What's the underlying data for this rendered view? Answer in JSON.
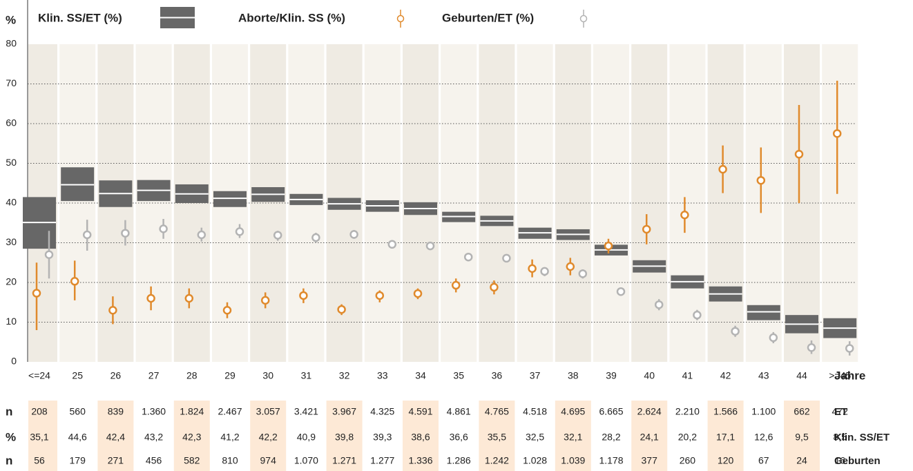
{
  "chart_data": {
    "type": "interval",
    "y_unit_label": "%",
    "x_axis_label": "Jahre",
    "categories": [
      "<=24",
      "25",
      "26",
      "27",
      "28",
      "29",
      "30",
      "31",
      "32",
      "33",
      "34",
      "35",
      "36",
      "37",
      "38",
      "39",
      "40",
      "41",
      "42",
      "43",
      "44",
      ">=45"
    ],
    "ylim": [
      0,
      80
    ],
    "yticks": [
      0,
      10,
      20,
      30,
      40,
      50,
      60,
      70,
      80
    ],
    "grid": true,
    "series": [
      {
        "name": "Klin. SS/ET (%)",
        "color": "#676767",
        "mark": "box",
        "values": [
          35.1,
          44.6,
          42.4,
          43.2,
          42.3,
          41.2,
          42.2,
          40.9,
          39.8,
          39.3,
          38.6,
          36.6,
          35.5,
          32.5,
          32.1,
          28.2,
          24.1,
          20.2,
          17.1,
          12.6,
          9.5,
          8.5
        ],
        "value_labels": [
          "35,1",
          "44,6",
          "42,4",
          "43,2",
          "42,3",
          "41,2",
          "42,2",
          "40,9",
          "39,8",
          "39,3",
          "38,6",
          "36,6",
          "35,5",
          "32,5",
          "32,1",
          "28,2",
          "24,1",
          "20,2",
          "17,1",
          "12,6",
          "9,5",
          "8,5"
        ],
        "lower": [
          28.5,
          40.5,
          39,
          40.5,
          40,
          39,
          40.3,
          39.5,
          38.3,
          37.8,
          37,
          35.2,
          34.2,
          31,
          30.7,
          26.8,
          22.5,
          18.5,
          15.2,
          10.5,
          7.2,
          6
        ],
        "upper": [
          41.5,
          49,
          45.7,
          45.8,
          44.7,
          43,
          44,
          42.3,
          41.3,
          40.7,
          40.2,
          37.8,
          36.8,
          33.8,
          33.4,
          29.5,
          25.6,
          21.8,
          19,
          14.3,
          11.8,
          11
        ]
      },
      {
        "name": "Aborte/Klin. SS (%)",
        "color": "#e08a2c",
        "mark": "point",
        "values": [
          17.3,
          20.3,
          13,
          16,
          16,
          13,
          15.5,
          16.7,
          13.2,
          16.7,
          17.2,
          19.3,
          18.8,
          23.5,
          24,
          29.2,
          33.4,
          37,
          48.5,
          45.7,
          52.3,
          57.5
        ],
        "lower": [
          8,
          15.5,
          9.5,
          13,
          13.5,
          11,
          13.5,
          14.8,
          11.8,
          15,
          15.8,
          17.5,
          17,
          21.3,
          21.8,
          27.3,
          29.6,
          32.5,
          42.5,
          37.5,
          40,
          42.3
        ],
        "upper": [
          25,
          25.5,
          16.5,
          19,
          18.5,
          15,
          17.5,
          18.5,
          14.5,
          18,
          18.5,
          21,
          20.5,
          25.8,
          26.2,
          31,
          37.2,
          41.5,
          54.5,
          54,
          64.7,
          70.8
        ]
      },
      {
        "name": "Geburten/ET (%)",
        "color": "#b3b3b3",
        "mark": "point",
        "values": [
          27,
          32,
          32.4,
          33.5,
          32,
          32.8,
          31.9,
          31.3,
          32.1,
          29.6,
          29.2,
          26.4,
          26.1,
          22.8,
          22.2,
          17.7,
          14.4,
          11.8,
          7.7,
          6.1,
          3.6,
          3.4
        ],
        "lower": [
          21,
          28,
          29.3,
          31,
          30.3,
          31.2,
          30.5,
          30,
          31,
          28.6,
          28.2,
          25.5,
          25.2,
          21.6,
          21,
          16.8,
          13,
          10.5,
          6.3,
          4.7,
          2,
          1.6
        ],
        "upper": [
          33,
          35.8,
          35.7,
          36,
          33.8,
          34.7,
          33,
          32.5,
          33.2,
          30.6,
          30,
          27.3,
          27,
          23.8,
          23.3,
          18.6,
          15.8,
          13.1,
          9.1,
          7.5,
          5.4,
          5.2
        ]
      }
    ]
  },
  "table": {
    "rows": [
      {
        "label": "n",
        "title": "ET",
        "cells": [
          "208",
          "560",
          "839",
          "1.360",
          "1.824",
          "2.467",
          "3.057",
          "3.421",
          "3.967",
          "4.325",
          "4.591",
          "4.861",
          "4.765",
          "4.518",
          "4.695",
          "6.665",
          "2.624",
          "2.210",
          "1.566",
          "1.100",
          "662",
          "472"
        ]
      },
      {
        "label": "%",
        "title": "Klin. SS/ET"
      },
      {
        "label": "n",
        "title": "Geburten",
        "cells": [
          "56",
          "179",
          "271",
          "456",
          "582",
          "810",
          "974",
          "1.070",
          "1.271",
          "1.277",
          "1.336",
          "1.286",
          "1.242",
          "1.028",
          "1.039",
          "1.178",
          "377",
          "260",
          "120",
          "67",
          "24",
          "16"
        ]
      }
    ]
  }
}
